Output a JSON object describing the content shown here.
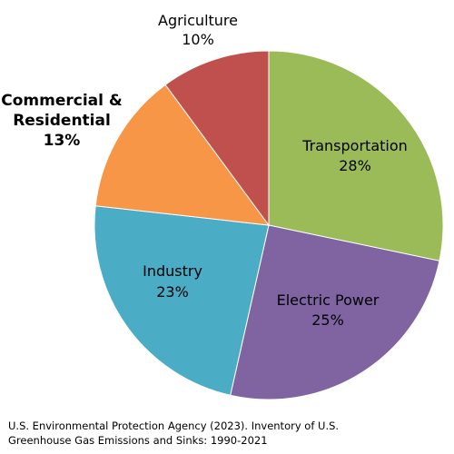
{
  "chart_data": {
    "type": "pie",
    "title": "",
    "start_angle_deg": 0,
    "direction": "clockwise",
    "slices": [
      {
        "label": "Transportation",
        "value": 28,
        "value_label": "28%",
        "color": "#9bbb59",
        "emphasis": false
      },
      {
        "label": "Electric Power",
        "value": 25,
        "value_label": "25%",
        "color": "#8064a2",
        "emphasis": false
      },
      {
        "label": "Industry",
        "value": 23,
        "value_label": "23%",
        "color": "#4bacc6",
        "emphasis": false
      },
      {
        "label": "Commercial & Residential",
        "label_lines": [
          "Commercial &",
          "Residential"
        ],
        "value": 13,
        "value_label": "13%",
        "color": "#f79646",
        "emphasis": true
      },
      {
        "label": "Agriculture",
        "value": 10,
        "value_label": "10%",
        "color": "#c0504d",
        "emphasis": false
      }
    ]
  },
  "source": {
    "line1": "U.S. Environmental Protection Agency (2023). Inventory of U.S.",
    "line2": "Greenhouse Gas Emissions and Sinks: 1990-2021"
  }
}
